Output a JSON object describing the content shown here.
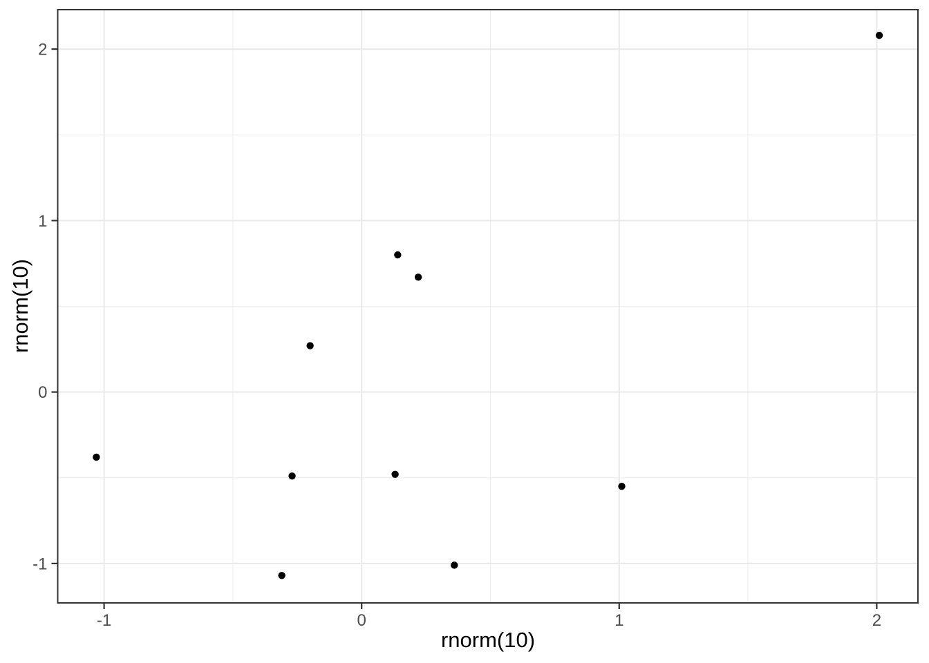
{
  "chart_data": {
    "type": "scatter",
    "title": "",
    "xlabel": "rnorm(10)",
    "ylabel": "rnorm(10)",
    "points": [
      [
        2.01,
        2.08
      ],
      [
        0.14,
        0.8
      ],
      [
        0.22,
        0.67
      ],
      [
        -0.2,
        0.27
      ],
      [
        -1.03,
        -0.38
      ],
      [
        -0.27,
        -0.49
      ],
      [
        0.13,
        -0.48
      ],
      [
        1.01,
        -0.55
      ],
      [
        0.36,
        -1.01
      ],
      [
        -0.31,
        -1.07
      ]
    ],
    "xlim": [
      -1.18,
      2.16
    ],
    "ylim": [
      -1.23,
      2.23
    ],
    "x_major_ticks": [
      -1,
      0,
      1,
      2
    ],
    "y_major_ticks": [
      -1,
      0,
      1,
      2
    ],
    "x_tick_labels": [
      "-1",
      "0",
      "1",
      "2"
    ],
    "y_tick_labels": [
      "-1",
      "0",
      "1",
      "2"
    ],
    "x_minor_gridlines": [
      -0.5,
      0.5,
      1.5
    ],
    "y_minor_gridlines": [
      -0.5,
      0.5,
      1.5
    ],
    "grid": true,
    "legend": "none",
    "colors": {
      "background": "#ffffff",
      "panel_background": "#ffffff",
      "panel_border": "#333333",
      "grid_major": "#e9e9e9",
      "grid_minor": "#efefef",
      "tick_mark": "#333333",
      "tick_label": "#4d4d4d",
      "axis_title": "#000000",
      "point": "#000000"
    }
  }
}
